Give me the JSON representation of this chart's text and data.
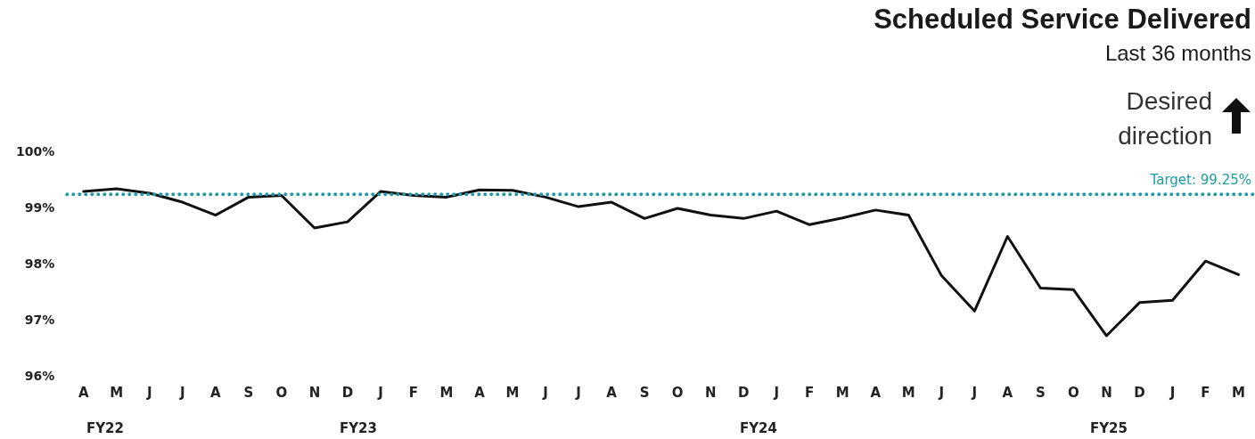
{
  "chart_data": {
    "type": "line",
    "title": "Scheduled Service Delivered",
    "subtitle": "Last 36 months",
    "categories": [
      "A",
      "M",
      "J",
      "J",
      "A",
      "S",
      "O",
      "N",
      "D",
      "J",
      "F",
      "M",
      "A",
      "M",
      "J",
      "J",
      "A",
      "S",
      "O",
      "N",
      "D",
      "J",
      "F",
      "M",
      "A",
      "M",
      "J",
      "J",
      "A",
      "S",
      "O",
      "N",
      "D",
      "J",
      "F",
      "M"
    ],
    "series": [
      {
        "color": "#111111",
        "values": [
          99.3,
          99.35,
          99.27,
          99.11,
          98.88,
          99.2,
          99.23,
          98.65,
          98.76,
          99.3,
          99.23,
          99.2,
          99.33,
          99.32,
          99.2,
          99.03,
          99.11,
          98.82,
          99.0,
          98.88,
          98.82,
          98.95,
          98.71,
          98.83,
          98.97,
          98.88,
          97.8,
          97.17,
          98.5,
          97.58,
          97.55,
          96.73,
          97.32,
          97.36,
          98.06,
          97.82
        ]
      }
    ],
    "ylim": [
      96,
      100
    ],
    "yticks": [
      {
        "value": 96,
        "label": "96%"
      },
      {
        "value": 97,
        "label": "97%"
      },
      {
        "value": 98,
        "label": "98%"
      },
      {
        "value": 99,
        "label": "99%"
      },
      {
        "value": 100,
        "label": "100%"
      }
    ],
    "ref_lines": [
      {
        "axis": "y",
        "value": 99.25,
        "label": "Target: 99.25%",
        "color": "#1a9ba5",
        "line_style": "dotted"
      }
    ],
    "annotations": [
      "Desired direction",
      "FY22",
      "FY23",
      "FY24",
      "FY25"
    ],
    "grid": false,
    "legend": false,
    "marker": "none",
    "line_style": "solid"
  }
}
